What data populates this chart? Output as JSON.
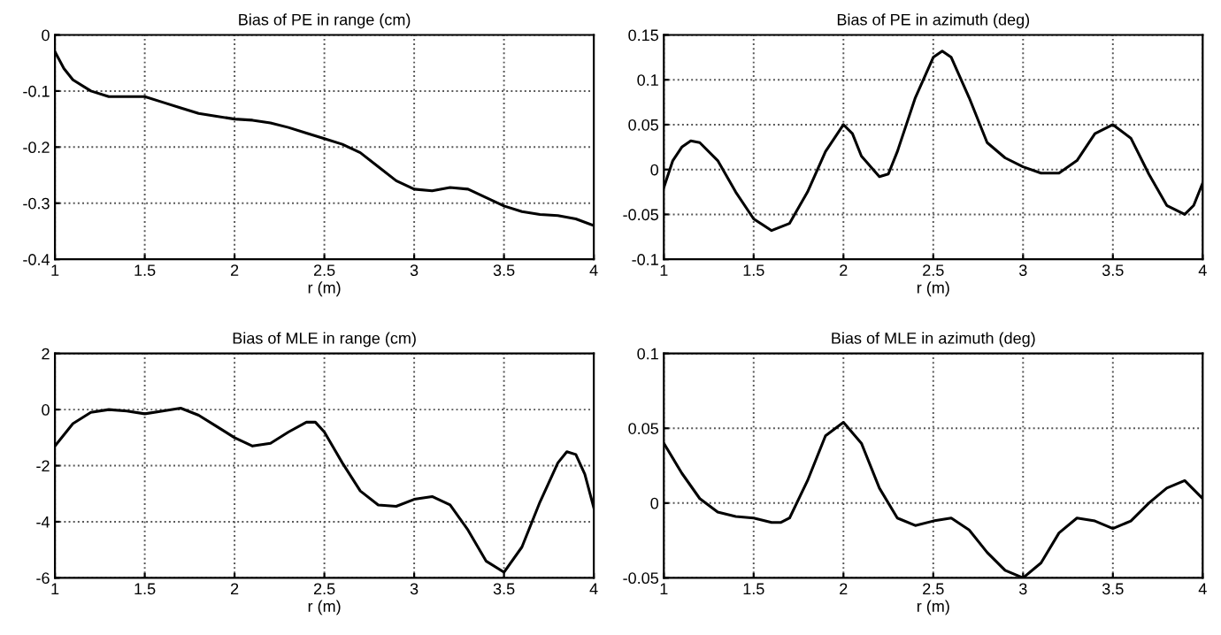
{
  "chart_data": [
    {
      "type": "line",
      "title": "Bias of PE in range (cm)",
      "xlabel": "r (m)",
      "grid": true,
      "line_style": "solid",
      "xlim": [
        1,
        4
      ],
      "xticks": [
        1,
        1.5,
        2,
        2.5,
        3,
        3.5,
        4
      ],
      "ylim": [
        -0.4,
        0
      ],
      "yticks": [
        0,
        -0.1,
        -0.2,
        -0.3,
        -0.4
      ],
      "x": [
        1.0,
        1.05,
        1.1,
        1.2,
        1.3,
        1.4,
        1.5,
        1.6,
        1.7,
        1.8,
        1.9,
        2.0,
        2.1,
        2.2,
        2.3,
        2.4,
        2.5,
        2.6,
        2.7,
        2.8,
        2.9,
        3.0,
        3.1,
        3.2,
        3.3,
        3.4,
        3.5,
        3.6,
        3.7,
        3.8,
        3.9,
        4.0
      ],
      "series": [
        {
          "color": "#000000",
          "values": [
            -0.03,
            -0.06,
            -0.08,
            -0.1,
            -0.11,
            -0.11,
            -0.11,
            -0.12,
            -0.13,
            -0.14,
            -0.145,
            -0.15,
            -0.152,
            -0.157,
            -0.165,
            -0.175,
            -0.185,
            -0.195,
            -0.21,
            -0.235,
            -0.26,
            -0.275,
            -0.278,
            -0.272,
            -0.275,
            -0.29,
            -0.305,
            -0.315,
            -0.32,
            -0.322,
            -0.328,
            -0.34
          ]
        }
      ]
    },
    {
      "type": "line",
      "title": "Bias of PE in azimuth (deg)",
      "xlabel": "r (m)",
      "grid": true,
      "line_style": "solid",
      "xlim": [
        1,
        4
      ],
      "xticks": [
        1,
        1.5,
        2,
        2.5,
        3,
        3.5,
        4
      ],
      "ylim": [
        -0.1,
        0.15
      ],
      "yticks": [
        0.15,
        0.1,
        0.05,
        0,
        -0.05,
        -0.1
      ],
      "x": [
        1.0,
        1.05,
        1.1,
        1.15,
        1.2,
        1.3,
        1.4,
        1.5,
        1.6,
        1.7,
        1.8,
        1.9,
        2.0,
        2.05,
        2.1,
        2.2,
        2.25,
        2.3,
        2.4,
        2.5,
        2.55,
        2.6,
        2.7,
        2.8,
        2.9,
        3.0,
        3.1,
        3.2,
        3.3,
        3.4,
        3.5,
        3.6,
        3.7,
        3.8,
        3.9,
        3.95,
        4.0
      ],
      "series": [
        {
          "color": "#000000",
          "values": [
            -0.02,
            0.01,
            0.025,
            0.032,
            0.03,
            0.01,
            -0.025,
            -0.055,
            -0.068,
            -0.06,
            -0.025,
            0.02,
            0.05,
            0.04,
            0.015,
            -0.008,
            -0.005,
            0.02,
            0.08,
            0.125,
            0.132,
            0.125,
            0.08,
            0.03,
            0.013,
            0.003,
            -0.004,
            -0.004,
            0.01,
            0.04,
            0.05,
            0.035,
            -0.005,
            -0.04,
            -0.05,
            -0.04,
            -0.015
          ]
        }
      ]
    },
    {
      "type": "line",
      "title": "Bias of MLE in range (cm)",
      "xlabel": "r (m)",
      "grid": true,
      "line_style": "solid",
      "xlim": [
        1,
        4
      ],
      "xticks": [
        1,
        1.5,
        2,
        2.5,
        3,
        3.5,
        4
      ],
      "ylim": [
        -6,
        2
      ],
      "yticks": [
        2,
        0,
        -2,
        -4,
        -6
      ],
      "x": [
        1.0,
        1.1,
        1.2,
        1.3,
        1.4,
        1.5,
        1.6,
        1.7,
        1.8,
        1.9,
        2.0,
        2.1,
        2.2,
        2.3,
        2.4,
        2.45,
        2.5,
        2.6,
        2.7,
        2.8,
        2.9,
        3.0,
        3.1,
        3.2,
        3.3,
        3.4,
        3.5,
        3.6,
        3.7,
        3.8,
        3.85,
        3.9,
        3.95,
        4.0
      ],
      "series": [
        {
          "color": "#000000",
          "values": [
            -1.3,
            -0.5,
            -0.1,
            0,
            -0.05,
            -0.15,
            -0.05,
            0.05,
            -0.2,
            -0.6,
            -1.0,
            -1.3,
            -1.2,
            -0.8,
            -0.45,
            -0.45,
            -0.8,
            -1.9,
            -2.9,
            -3.4,
            -3.45,
            -3.2,
            -3.1,
            -3.4,
            -4.3,
            -5.4,
            -5.8,
            -4.9,
            -3.3,
            -1.9,
            -1.5,
            -1.6,
            -2.3,
            -3.5
          ]
        }
      ]
    },
    {
      "type": "line",
      "title": "Bias of MLE in azimuth (deg)",
      "xlabel": "r (m)",
      "grid": true,
      "line_style": "solid",
      "xlim": [
        1,
        4
      ],
      "xticks": [
        1,
        1.5,
        2,
        2.5,
        3,
        3.5,
        4
      ],
      "ylim": [
        -0.05,
        0.1
      ],
      "yticks": [
        0.1,
        0.05,
        0,
        -0.05
      ],
      "x": [
        1.0,
        1.1,
        1.2,
        1.3,
        1.4,
        1.5,
        1.6,
        1.65,
        1.7,
        1.8,
        1.9,
        2.0,
        2.1,
        2.2,
        2.3,
        2.4,
        2.5,
        2.6,
        2.7,
        2.8,
        2.9,
        3.0,
        3.1,
        3.2,
        3.3,
        3.4,
        3.5,
        3.6,
        3.7,
        3.8,
        3.9,
        4.0
      ],
      "series": [
        {
          "color": "#000000",
          "values": [
            0.04,
            0.02,
            0.003,
            -0.006,
            -0.009,
            -0.01,
            -0.013,
            -0.013,
            -0.01,
            0.015,
            0.045,
            0.054,
            0.04,
            0.01,
            -0.01,
            -0.015,
            -0.012,
            -0.01,
            -0.018,
            -0.033,
            -0.045,
            -0.05,
            -0.04,
            -0.02,
            -0.01,
            -0.012,
            -0.017,
            -0.012,
            0.0,
            0.01,
            0.015,
            0.003
          ]
        }
      ]
    }
  ]
}
